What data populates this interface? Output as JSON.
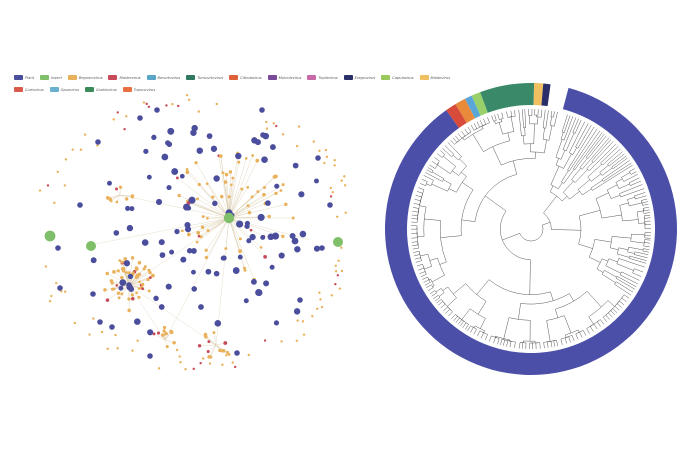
{
  "legend": {
    "rows": [
      [
        {
          "label": "Plant",
          "color": "#4b4e9c"
        },
        {
          "label": "Insect",
          "color": "#7fbf6a"
        },
        {
          "label": "Begomovirus",
          "color": "#e8b15a"
        },
        {
          "label": "Mastrevirus",
          "color": "#c84a5a"
        },
        {
          "label": "Becurtovirus",
          "color": "#5aa6c8"
        },
        {
          "label": "Turncurtovirus",
          "color": "#2f7a5e"
        },
        {
          "label": "Citlodavirus",
          "color": "#e0603a"
        },
        {
          "label": "Mulcrilevirus",
          "color": "#7a4a9a"
        },
        {
          "label": "Topilevirus",
          "color": "#c86aa8"
        },
        {
          "label": "Eragrovirus",
          "color": "#2a2f6a"
        },
        {
          "label": "Capulavirus",
          "color": "#9ac85a"
        },
        {
          "label": "Maldovirus",
          "color": "#f0c060"
        }
      ],
      [
        {
          "label": "Curtovirus",
          "color": "#d85a4a"
        },
        {
          "label": "Opunvirus",
          "color": "#6ab0d0"
        },
        {
          "label": "Grablovirus",
          "color": "#3a8a5a"
        },
        {
          "label": "Topocuvirus",
          "color": "#e87040"
        }
      ]
    ]
  },
  "colors": {
    "plant_node": "#4b4e9c",
    "insect_node": "#7fbf6a",
    "virus_node": "#e8b15a",
    "edge": "#d8c9a8",
    "ring": "#4b4fa8",
    "tree_line": "#444444"
  },
  "tree_ring_segments": [
    {
      "color": "#4b4fa8",
      "share": 0.86
    },
    {
      "color": "#d84a3a",
      "share": 0.012
    },
    {
      "color": "#e88a3a",
      "share": 0.012
    },
    {
      "color": "#5aa6d8",
      "share": 0.008
    },
    {
      "color": "#9ad06a",
      "share": 0.01
    },
    {
      "color": "#3a8a6a",
      "share": 0.06
    },
    {
      "color": "#f0c060",
      "share": 0.01
    },
    {
      "color": "#2a2f6a",
      "share": 0.008
    }
  ]
}
